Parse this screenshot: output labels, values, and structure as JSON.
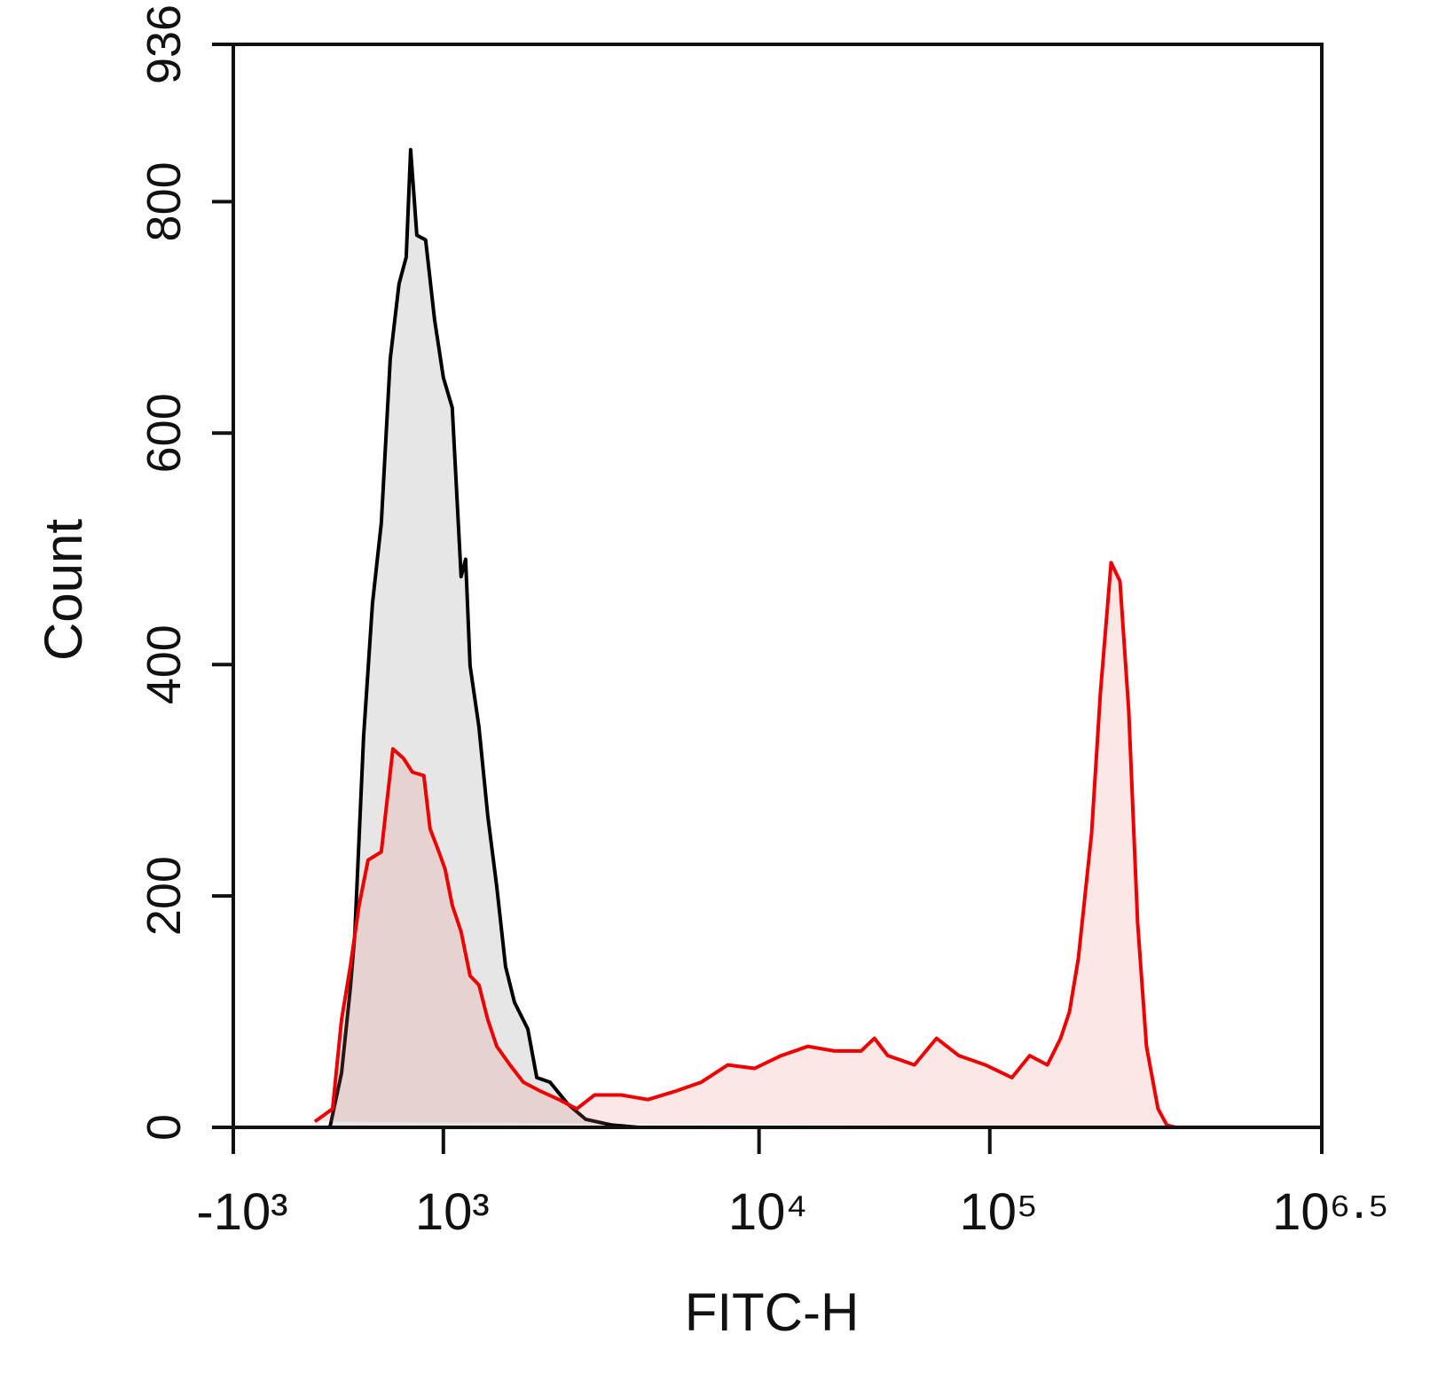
{
  "chart_data": {
    "type": "histogram-overlay",
    "x_label": "FITC-H",
    "y_label": "Count",
    "xscale": "biexponential",
    "xlim": [
      -1000,
      3162278
    ],
    "xticks": [
      {
        "value": -1000,
        "label": "-10³"
      },
      {
        "value": 1000,
        "label": "10³"
      },
      {
        "value": 10000,
        "label": "10⁴"
      },
      {
        "value": 100000,
        "label": "10⁵"
      },
      {
        "value": 3162278,
        "label": "10⁶·⁵"
      }
    ],
    "ylim": [
      0,
      936
    ],
    "yticks": [
      0,
      200,
      400,
      600,
      800,
      936
    ],
    "series": [
      {
        "color": "#000000",
        "fill": "#e6e6e6",
        "x": [
          -181,
          -80,
          30,
          114,
          156,
          241,
          325,
          409,
          494,
          578,
          646,
          688,
          747,
          831,
          916,
          1000,
          1067,
          1138,
          1176,
          1215,
          1296,
          1383,
          1476,
          1574,
          1680,
          1852,
          1976,
          2178,
          2480,
          2823,
          3429,
          4166
        ],
        "values": [
          0,
          0,
          47,
          120,
          166,
          338,
          453,
          522,
          664,
          729,
          752,
          845,
          771,
          767,
          698,
          648,
          622,
          476,
          491,
          399,
          346,
          269,
          208,
          139,
          108,
          85,
          43,
          39,
          20,
          7,
          2,
          0
        ]
      },
      {
        "color": "#ee0000",
        "fill": "rgba(240,120,120,0.18)",
        "x": [
          -224,
          -55,
          30,
          114,
          198,
          283,
          409,
          519,
          620,
          705,
          814,
          873,
          958,
          1013,
          1067,
          1138,
          1215,
          1296,
          1383,
          1476,
          1626,
          1793,
          2042,
          2324,
          2646,
          3012,
          3659,
          4445,
          5400,
          6559,
          7967,
          9681,
          12480,
          16270,
          21230,
          27690,
          31620,
          36130,
          47120,
          58770,
          73360,
          95680,
          125900,
          151400,
          182000,
          208900,
          229100,
          251200,
          288400,
          316200,
          353200,
          387300,
          424600,
          465600,
          510500,
          575400,
          631000,
          691800
        ],
        "values": [
          5,
          16,
          93,
          139,
          192,
          231,
          238,
          327,
          319,
          307,
          304,
          258,
          238,
          223,
          192,
          169,
          131,
          123,
          93,
          70,
          54,
          39,
          31,
          24,
          16,
          28,
          28,
          24,
          31,
          39,
          54,
          51,
          62,
          70,
          66,
          66,
          77,
          62,
          54,
          77,
          62,
          54,
          43,
          62,
          54,
          77,
          100,
          146,
          254,
          376,
          488,
          472,
          360,
          177,
          70,
          16,
          2,
          0
        ]
      }
    ]
  }
}
